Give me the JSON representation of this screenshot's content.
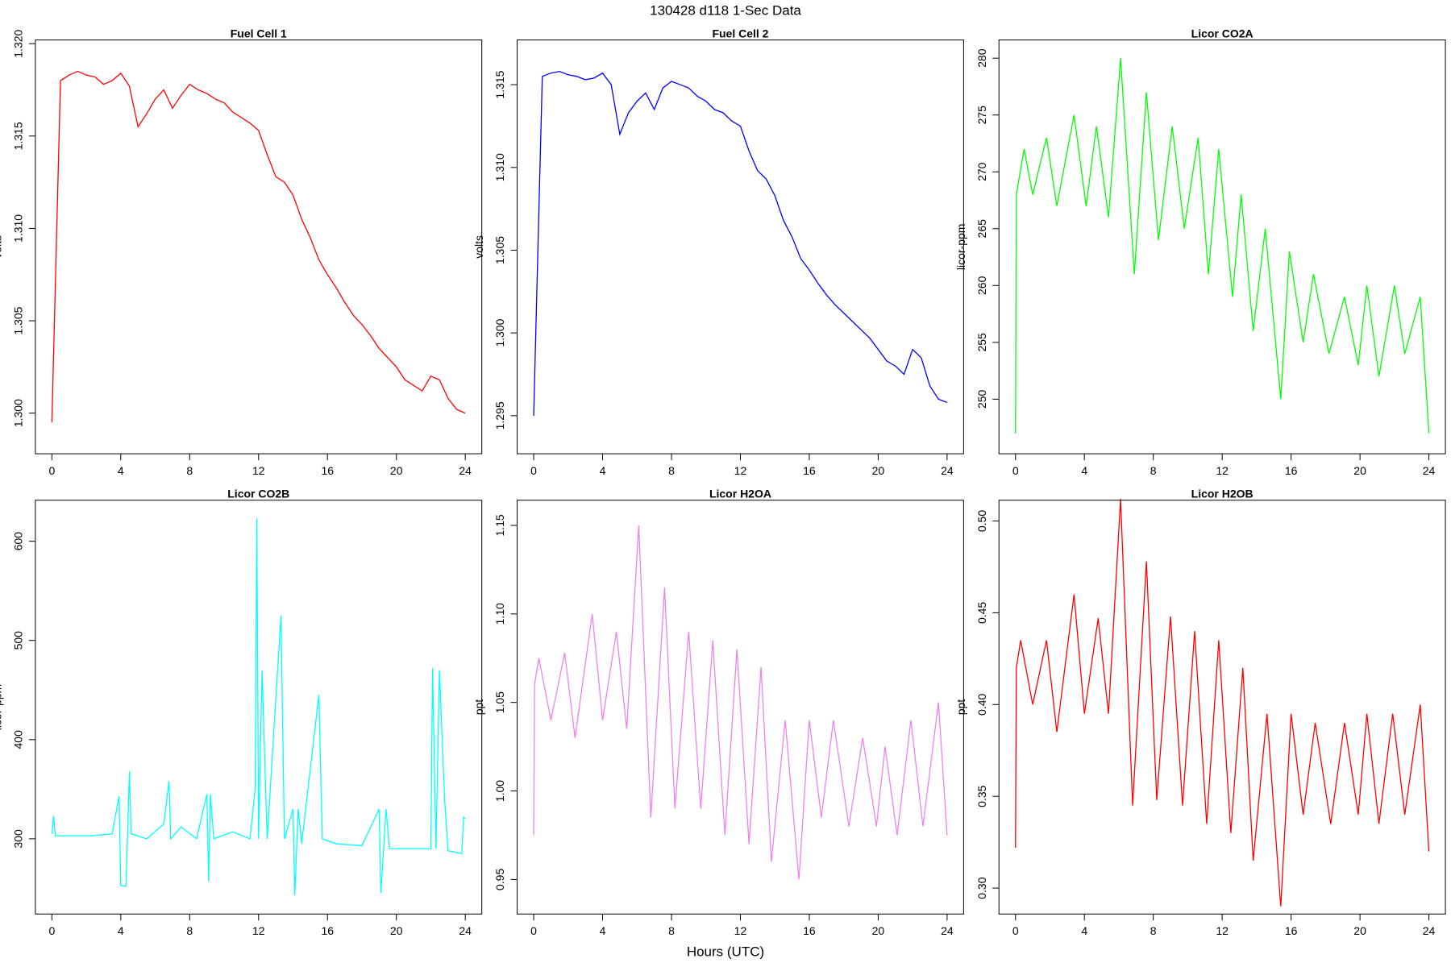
{
  "title": "130428   d118   1-Sec Data",
  "x_label": "Hours (UTC)",
  "chart_data": [
    {
      "type": "line",
      "title": "Fuel Cell 1",
      "y_label": "volts",
      "x": [
        0,
        0.5,
        1,
        1.5,
        2,
        2.5,
        3,
        3.5,
        4,
        4.5,
        5,
        5.5,
        6,
        6.5,
        7,
        7.5,
        8,
        8.5,
        9,
        9.5,
        10,
        10.5,
        11,
        11.5,
        12,
        12.5,
        13,
        13.5,
        14,
        14.5,
        15,
        15.5,
        16,
        16.5,
        17,
        17.5,
        18,
        18.5,
        19,
        19.5,
        20,
        20.5,
        21,
        21.5,
        22,
        22.5,
        23,
        23.5,
        24
      ],
      "series": [
        {
          "color": "#ff0000",
          "values": [
            1.2995,
            1.318,
            1.3183,
            1.3185,
            1.3183,
            1.3182,
            1.3178,
            1.318,
            1.3184,
            1.3177,
            1.3155,
            1.3162,
            1.317,
            1.3175,
            1.3165,
            1.3172,
            1.3178,
            1.3175,
            1.3173,
            1.317,
            1.3168,
            1.3163,
            1.316,
            1.3157,
            1.3153,
            1.314,
            1.3128,
            1.3125,
            1.3118,
            1.3105,
            1.3095,
            1.3083,
            1.3075,
            1.3068,
            1.306,
            1.3053,
            1.3048,
            1.3042,
            1.3035,
            1.303,
            1.3025,
            1.3018,
            1.3015,
            1.3012,
            1.302,
            1.3018,
            1.3008,
            1.3002,
            1.3
          ]
        }
      ],
      "xlim": [
        -0.96,
        24.96
      ],
      "ylim": [
        1.2978,
        1.3202
      ],
      "xticks": [
        0,
        4,
        8,
        12,
        16,
        20,
        24
      ],
      "yticks": [
        {
          "value": 1.3,
          "label": "1.300"
        },
        1.305,
        {
          "value": 1.31,
          "label": "1.310"
        },
        1.315,
        {
          "value": 1.32,
          "label": "1.320"
        }
      ]
    },
    {
      "type": "line",
      "title": "Fuel Cell 2",
      "y_label": "volts",
      "x": [
        0,
        0.5,
        1,
        1.5,
        2,
        2.5,
        3,
        3.5,
        4,
        4.5,
        5,
        5.5,
        6,
        6.5,
        7,
        7.5,
        8,
        8.5,
        9,
        9.5,
        10,
        10.5,
        11,
        11.5,
        12,
        12.5,
        13,
        13.5,
        14,
        14.5,
        15,
        15.5,
        16,
        16.5,
        17,
        17.5,
        18,
        18.5,
        19,
        19.5,
        20,
        20.5,
        21,
        21.5,
        22,
        22.5,
        23,
        23.5,
        24
      ],
      "series": [
        {
          "color": "#0000ff",
          "values": [
            1.295,
            1.3155,
            1.3157,
            1.3158,
            1.3156,
            1.3155,
            1.3153,
            1.3154,
            1.3157,
            1.315,
            1.312,
            1.3133,
            1.314,
            1.3145,
            1.3135,
            1.3148,
            1.3152,
            1.315,
            1.3148,
            1.3143,
            1.314,
            1.3135,
            1.3133,
            1.3128,
            1.3125,
            1.311,
            1.3098,
            1.3093,
            1.3083,
            1.3068,
            1.3058,
            1.3045,
            1.3038,
            1.303,
            1.3023,
            1.3017,
            1.3012,
            1.3007,
            1.3002,
            1.2997,
            1.299,
            1.2983,
            1.298,
            1.2975,
            1.299,
            1.2985,
            1.2968,
            1.296,
            1.2958
          ]
        }
      ],
      "xlim": [
        -0.96,
        24.96
      ],
      "ylim": [
        1.2927,
        1.3177
      ],
      "xticks": [
        0,
        4,
        8,
        12,
        16,
        20,
        24
      ],
      "yticks": [
        1.295,
        {
          "value": 1.3,
          "label": "1.300"
        },
        1.305,
        {
          "value": 1.31,
          "label": "1.310"
        },
        1.315
      ]
    },
    {
      "type": "line",
      "title": "Licor CO2A",
      "y_label": "licor-ppm",
      "x": [
        0,
        0.05,
        0.5,
        1.0,
        1.8,
        2.4,
        3.4,
        4.1,
        4.7,
        5.4,
        6.1,
        6.9,
        7.6,
        8.3,
        9.1,
        9.8,
        10.6,
        11.2,
        11.8,
        12.6,
        13.1,
        13.8,
        14.5,
        15.4,
        15.9,
        16.7,
        17.3,
        18.2,
        19.1,
        19.9,
        20.4,
        21.1,
        22.0,
        22.6,
        23.5,
        24.0
      ],
      "series": [
        {
          "color": "#00ff00",
          "values": [
            247,
            268,
            272,
            268,
            273,
            267,
            275,
            267,
            274,
            266,
            280,
            261,
            277,
            264,
            274,
            265,
            273,
            261,
            272,
            259,
            268,
            256,
            265,
            250,
            263,
            255,
            261,
            254,
            259,
            253,
            260,
            252,
            260,
            254,
            259,
            247
          ]
        }
      ],
      "xlim": [
        -0.96,
        24.96
      ],
      "ylim": [
        245.2,
        281.6
      ],
      "xticks": [
        0,
        4,
        8,
        12,
        16,
        20,
        24
      ],
      "yticks": [
        250,
        255,
        260,
        265,
        270,
        275,
        280
      ]
    },
    {
      "type": "line",
      "title": "Licor CO2B",
      "y_label": "licor-ppm",
      "x": [
        0,
        0.1,
        0.2,
        1.5,
        2.3,
        3.5,
        3.9,
        4.0,
        4.3,
        4.4,
        4.5,
        4.6,
        5.5,
        6.5,
        6.8,
        6.9,
        7.5,
        8.4,
        9.0,
        9.1,
        9.2,
        9.4,
        10.5,
        11.5,
        11.8,
        11.9,
        12.0,
        12.2,
        12.5,
        13.3,
        13.5,
        14.0,
        14.1,
        14.3,
        14.5,
        15.5,
        15.7,
        16.5,
        18.0,
        19.0,
        19.1,
        19.4,
        19.6,
        21.0,
        22.0,
        22.1,
        22.3,
        22.5,
        22.8,
        23.0,
        23.8,
        23.9,
        24.0
      ],
      "series": [
        {
          "color": "#00ffff",
          "values": [
            305,
            323,
            303,
            303,
            303,
            305,
            343,
            253,
            252,
            307,
            368,
            305,
            300,
            315,
            358,
            300,
            312,
            300,
            345,
            257,
            345,
            300,
            307,
            300,
            350,
            623,
            300,
            470,
            300,
            525,
            300,
            330,
            243,
            330,
            295,
            445,
            300,
            295,
            293,
            330,
            245,
            330,
            290,
            290,
            290,
            472,
            290,
            470,
            340,
            288,
            285,
            322,
            320
          ]
        }
      ],
      "xlim": [
        -0.96,
        24.96
      ],
      "ylim": [
        224.2,
        641.3
      ],
      "xticks": [
        0,
        4,
        8,
        12,
        16,
        20,
        24
      ],
      "yticks": [
        300,
        400,
        500,
        600
      ]
    },
    {
      "type": "line",
      "title": "Licor H2OA",
      "y_label": "ppt",
      "x": [
        0,
        0.05,
        0.3,
        1.0,
        1.8,
        2.4,
        3.4,
        4.0,
        4.8,
        5.4,
        6.1,
        6.8,
        7.6,
        8.2,
        9.0,
        9.7,
        10.4,
        11.1,
        11.8,
        12.5,
        13.2,
        13.8,
        14.6,
        15.4,
        16.0,
        16.7,
        17.4,
        18.3,
        19.1,
        19.9,
        20.4,
        21.1,
        21.9,
        22.6,
        23.5,
        24.0
      ],
      "series": [
        {
          "color": "#ee82ee",
          "values": [
            0.975,
            1.06,
            1.075,
            1.04,
            1.078,
            1.03,
            1.1,
            1.04,
            1.09,
            1.035,
            1.15,
            0.985,
            1.115,
            0.99,
            1.09,
            0.99,
            1.085,
            0.975,
            1.08,
            0.97,
            1.07,
            0.96,
            1.04,
            0.95,
            1.04,
            0.985,
            1.04,
            0.98,
            1.03,
            0.98,
            1.025,
            0.975,
            1.04,
            0.98,
            1.05,
            0.975
          ]
        }
      ],
      "xlim": [
        -0.96,
        24.96
      ],
      "ylim": [
        0.9305,
        1.1642
      ],
      "xticks": [
        0,
        4,
        8,
        12,
        16,
        20,
        24
      ],
      "yticks": [
        0.95,
        {
          "value": 1,
          "label": "1.00"
        },
        1.05,
        {
          "value": 1.1,
          "label": "1.10"
        },
        1.15
      ]
    },
    {
      "type": "line",
      "title": "Licor H2OB",
      "y_label": "ppt",
      "x": [
        0,
        0.05,
        0.3,
        1.0,
        1.8,
        2.4,
        3.4,
        4.0,
        4.8,
        5.4,
        6.1,
        6.8,
        7.6,
        8.2,
        9.0,
        9.7,
        10.4,
        11.1,
        11.8,
        12.5,
        13.2,
        13.8,
        14.6,
        15.4,
        16.0,
        16.7,
        17.4,
        18.3,
        19.1,
        19.9,
        20.4,
        21.1,
        21.9,
        22.6,
        23.5,
        24.0
      ],
      "series": [
        {
          "color": "#ff0000",
          "values": [
            0.322,
            0.42,
            0.435,
            0.4,
            0.435,
            0.385,
            0.46,
            0.395,
            0.447,
            0.395,
            0.512,
            0.345,
            0.478,
            0.348,
            0.448,
            0.345,
            0.44,
            0.335,
            0.435,
            0.33,
            0.42,
            0.315,
            0.395,
            0.29,
            0.395,
            0.34,
            0.39,
            0.335,
            0.39,
            0.34,
            0.395,
            0.335,
            0.395,
            0.34,
            0.4,
            0.32
          ]
        }
      ],
      "xlim": [
        -0.96,
        24.96
      ],
      "ylim": [
        0.2859,
        0.5113
      ],
      "xticks": [
        0,
        4,
        8,
        12,
        16,
        20,
        24
      ],
      "yticks": [
        {
          "value": 0.3,
          "label": "0.30"
        },
        0.35,
        {
          "value": 0.4,
          "label": "0.40"
        },
        0.45,
        {
          "value": 0.5,
          "label": "0.50"
        }
      ]
    }
  ]
}
